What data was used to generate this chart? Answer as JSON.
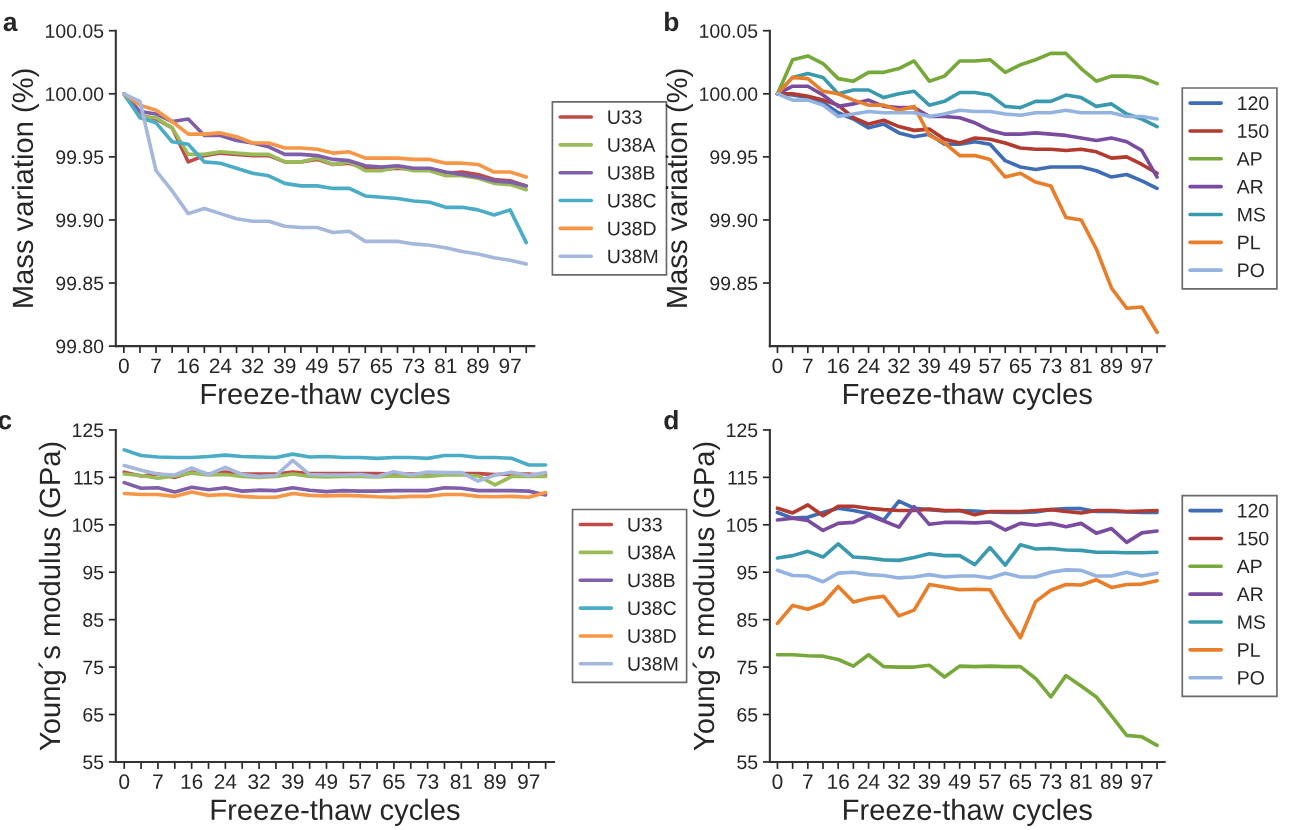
{
  "chart_data": [
    {
      "type": "line",
      "title": "a",
      "xlabel": "Freeze-thaw cycles",
      "ylabel": "Mass variation (%)",
      "legend": "right",
      "categories": [
        "0",
        null,
        "7",
        null,
        "16",
        null,
        "24",
        null,
        "32",
        null,
        "39",
        null,
        "49",
        null,
        "57",
        null,
        "65",
        null,
        "73",
        null,
        "81",
        null,
        "89",
        null,
        "97",
        null
      ],
      "ylim": [
        99.8,
        100.05
      ],
      "yticks": [
        {
          "value": 99.8,
          "label": "99.80"
        },
        {
          "value": 99.85,
          "label": "99.85"
        },
        {
          "value": 99.9,
          "label": "99.90"
        },
        {
          "value": 99.95,
          "label": "99.95"
        },
        {
          "value": 100.0,
          "label": "100.00"
        },
        {
          "value": 100.05,
          "label": "100.05"
        }
      ],
      "series": [
        {
          "name": "U33",
          "color": "#be4b48",
          "values": [
            100.0,
            99.983,
            99.98,
            99.973,
            99.946,
            99.951,
            99.953,
            99.952,
            99.951,
            99.951,
            99.946,
            99.946,
            99.948,
            99.944,
            99.945,
            99.941,
            99.94,
            99.941,
            99.94,
            99.94,
            99.937,
            99.938,
            99.936,
            99.932,
            99.931,
            99.927
          ]
        },
        {
          "name": "U38A",
          "color": "#9bbb59",
          "values": [
            100.0,
            99.982,
            99.981,
            99.973,
            99.952,
            99.952,
            99.954,
            99.953,
            99.952,
            99.952,
            99.946,
            99.946,
            99.949,
            99.944,
            99.946,
            99.939,
            99.939,
            99.942,
            99.939,
            99.939,
            99.935,
            99.935,
            99.933,
            99.929,
            99.928,
            99.924
          ]
        },
        {
          "name": "U38B",
          "color": "#7f5fa8",
          "values": [
            100.0,
            99.986,
            99.984,
            99.978,
            99.98,
            99.967,
            99.967,
            99.963,
            99.961,
            99.958,
            99.952,
            99.952,
            99.951,
            99.948,
            99.947,
            99.943,
            99.942,
            99.943,
            99.941,
            99.941,
            99.938,
            99.936,
            99.934,
            99.931,
            99.93,
            99.927
          ]
        },
        {
          "name": "U38C",
          "color": "#4bacc6",
          "values": [
            100.0,
            99.981,
            99.977,
            99.962,
            99.96,
            99.946,
            99.945,
            99.941,
            99.937,
            99.935,
            99.929,
            99.927,
            99.927,
            99.925,
            99.925,
            99.919,
            99.918,
            99.917,
            99.915,
            99.914,
            99.91,
            99.91,
            99.908,
            99.904,
            99.908,
            99.882
          ]
        },
        {
          "name": "U38D",
          "color": "#f79646",
          "values": [
            100.0,
            99.991,
            99.987,
            99.978,
            99.968,
            99.968,
            99.969,
            99.966,
            99.961,
            99.961,
            99.957,
            99.957,
            99.956,
            99.953,
            99.954,
            99.949,
            99.949,
            99.949,
            99.948,
            99.948,
            99.945,
            99.945,
            99.944,
            99.938,
            99.938,
            99.934
          ]
        },
        {
          "name": "U38M",
          "color": "#a5b8dc",
          "values": [
            100.0,
            99.994,
            99.939,
            99.923,
            99.905,
            99.909,
            99.905,
            99.901,
            99.899,
            99.899,
            99.895,
            99.894,
            99.894,
            99.89,
            99.891,
            99.883,
            99.883,
            99.883,
            99.881,
            99.88,
            99.878,
            99.875,
            99.873,
            99.87,
            99.868,
            99.865
          ]
        }
      ]
    },
    {
      "type": "line",
      "title": "b",
      "xlabel": "Freeze-thaw cycles",
      "ylabel": "Mass variation (%)",
      "legend": "right",
      "categories": [
        "0",
        null,
        "7",
        null,
        "16",
        null,
        "24",
        null,
        "32",
        null,
        "39",
        null,
        "49",
        null,
        "57",
        null,
        "65",
        null,
        "73",
        null,
        "81",
        null,
        "89",
        null,
        "97",
        null
      ],
      "ylim": [
        99.8,
        100.05
      ],
      "yticks": [
        {
          "value": 99.85,
          "label": "99.85"
        },
        {
          "value": 99.9,
          "label": "99.90"
        },
        {
          "value": 99.95,
          "label": "99.95"
        },
        {
          "value": 100.0,
          "label": "100.00"
        },
        {
          "value": 100.05,
          "label": "100.05"
        }
      ],
      "series": [
        {
          "name": "120",
          "color": "#3e6db5",
          "values": [
            100.0,
            99.999,
            99.997,
            99.993,
            99.985,
            99.98,
            99.973,
            99.976,
            99.969,
            99.966,
            99.968,
            99.96,
            99.96,
            99.962,
            99.96,
            99.947,
            99.942,
            99.94,
            99.942,
            99.942,
            99.942,
            99.939,
            99.934,
            99.936,
            99.931,
            99.925
          ]
        },
        {
          "name": "150",
          "color": "#b23a2e",
          "values": [
            100.0,
            100.0,
            99.998,
            99.995,
            99.991,
            99.981,
            99.976,
            99.979,
            99.974,
            99.971,
            99.972,
            99.964,
            99.961,
            99.965,
            99.964,
            99.961,
            99.957,
            99.956,
            99.956,
            99.955,
            99.956,
            99.954,
            99.949,
            99.95,
            99.944,
            99.937
          ]
        },
        {
          "name": "AP",
          "color": "#77a83a",
          "values": [
            100.0,
            100.027,
            100.03,
            100.024,
            100.012,
            100.01,
            100.017,
            100.017,
            100.02,
            100.026,
            100.01,
            100.014,
            100.026,
            100.026,
            100.027,
            100.017,
            100.023,
            100.027,
            100.032,
            100.032,
            100.02,
            100.01,
            100.014,
            100.014,
            100.013,
            100.008
          ]
        },
        {
          "name": "AR",
          "color": "#7a4c9f",
          "values": [
            100.0,
            100.006,
            100.006,
            99.999,
            99.99,
            99.992,
            99.995,
            99.99,
            99.989,
            99.989,
            99.982,
            99.982,
            99.981,
            99.977,
            99.971,
            99.968,
            99.968,
            99.969,
            99.968,
            99.967,
            99.965,
            99.963,
            99.965,
            99.962,
            99.955,
            99.934
          ]
        },
        {
          "name": "MS",
          "color": "#3a9aad",
          "values": [
            100.0,
            100.013,
            100.016,
            100.013,
            100.0,
            100.003,
            100.003,
            99.997,
            100.0,
            100.002,
            99.991,
            99.994,
            100.001,
            100.001,
            99.999,
            99.99,
            99.989,
            99.994,
            99.994,
            99.999,
            99.997,
            99.99,
            99.992,
            99.984,
            99.98,
            99.974
          ]
        },
        {
          "name": "PL",
          "color": "#e87e2a",
          "values": [
            100.0,
            100.013,
            100.012,
            100.002,
            100.0,
            99.995,
            99.991,
            99.991,
            99.987,
            99.99,
            99.967,
            99.961,
            99.951,
            99.951,
            99.948,
            99.934,
            99.937,
            99.93,
            99.927,
            99.902,
            99.9,
            99.877,
            99.846,
            99.83,
            99.831,
            99.811
          ]
        },
        {
          "name": "PO",
          "color": "#95b3e0",
          "values": [
            100.0,
            99.995,
            99.995,
            99.991,
            99.982,
            99.984,
            99.986,
            99.985,
            99.985,
            99.985,
            99.982,
            99.984,
            99.987,
            99.986,
            99.986,
            99.984,
            99.983,
            99.985,
            99.985,
            99.987,
            99.985,
            99.985,
            99.985,
            99.982,
            99.982,
            99.98
          ]
        }
      ]
    },
    {
      "type": "line",
      "title": "c",
      "xlabel": "Freeze-thaw cycles",
      "ylabel": "Young´s modulus (GPa)",
      "legend": "right",
      "categories": [
        "0",
        null,
        "7",
        null,
        "16",
        null,
        "24",
        null,
        "32",
        null,
        "39",
        null,
        "49",
        null,
        "57",
        null,
        "65",
        null,
        "73",
        null,
        "81",
        null,
        "89",
        null,
        "97",
        null
      ],
      "ylim": [
        55,
        125
      ],
      "yticks": [
        55,
        65,
        75,
        85,
        95,
        105,
        115,
        125
      ],
      "series": [
        {
          "name": "U33",
          "color": "#be4b48",
          "values": [
            116.1,
            115.3,
            115.7,
            115.0,
            116.1,
            115.7,
            116.1,
            115.7,
            115.7,
            115.7,
            116.1,
            115.8,
            115.8,
            115.8,
            115.8,
            115.8,
            115.7,
            115.7,
            115.7,
            115.8,
            115.8,
            115.8,
            115.6,
            115.7,
            115.7,
            115.4
          ]
        },
        {
          "name": "U38A",
          "color": "#9bbb59",
          "values": [
            115.7,
            115.4,
            114.8,
            115.3,
            115.9,
            115.5,
            115.6,
            115.2,
            115.0,
            115.2,
            115.7,
            115.2,
            115.1,
            115.2,
            115.2,
            115.1,
            115.3,
            115.2,
            115.2,
            115.5,
            115.5,
            115.3,
            113.4,
            115.2,
            115.2,
            115.2
          ]
        },
        {
          "name": "U38B",
          "color": "#7f5fa8",
          "values": [
            113.9,
            112.7,
            112.8,
            111.9,
            112.9,
            112.4,
            112.8,
            112.1,
            112.3,
            112.2,
            112.8,
            112.3,
            112.0,
            112.2,
            112.1,
            112.1,
            112.2,
            112.2,
            112.2,
            112.8,
            112.7,
            112.2,
            112.2,
            112.2,
            112.1,
            111.3
          ]
        },
        {
          "name": "U38C",
          "color": "#4bacc6",
          "values": [
            120.8,
            119.6,
            119.3,
            119.2,
            119.2,
            119.4,
            119.7,
            119.4,
            119.3,
            119.2,
            119.9,
            119.3,
            119.4,
            119.2,
            119.2,
            119.0,
            119.2,
            119.2,
            119.0,
            119.6,
            119.6,
            119.2,
            119.2,
            119.0,
            117.6,
            117.6
          ]
        },
        {
          "name": "U38D",
          "color": "#f79646",
          "values": [
            111.6,
            111.4,
            111.4,
            111.0,
            111.9,
            111.2,
            111.4,
            111.0,
            110.8,
            110.8,
            111.6,
            111.2,
            111.1,
            111.2,
            111.1,
            110.9,
            110.8,
            111.0,
            111.0,
            111.4,
            111.4,
            111.0,
            110.9,
            111.0,
            110.8,
            111.8
          ]
        },
        {
          "name": "U38M",
          "color": "#a5b8dc",
          "values": [
            117.5,
            116.5,
            115.7,
            115.5,
            117.0,
            115.6,
            117.1,
            115.6,
            115.2,
            115.4,
            118.6,
            115.6,
            115.5,
            115.5,
            115.6,
            115.2,
            116.2,
            115.5,
            116.1,
            116.0,
            116.0,
            114.2,
            115.5,
            116.1,
            115.4,
            116.0
          ]
        }
      ]
    },
    {
      "type": "line",
      "title": "d",
      "xlabel": "Freeze-thaw cycles",
      "ylabel": "Young´s modulus (GPa)",
      "legend": "right",
      "categories": [
        "0",
        null,
        "7",
        null,
        "16",
        null,
        "24",
        null,
        "32",
        null,
        "39",
        null,
        "49",
        null,
        "57",
        null,
        "65",
        null,
        "73",
        null,
        "81",
        null,
        "89",
        null,
        "97",
        null
      ],
      "ylim": [
        55,
        125
      ],
      "yticks": [
        55,
        65,
        75,
        85,
        95,
        105,
        115,
        125
      ],
      "series": [
        {
          "name": "120",
          "color": "#3e6db5",
          "values": [
            107.6,
            106.4,
            106.6,
            107.6,
            108.5,
            108.0,
            107.4,
            106.0,
            110.0,
            108.5,
            108.2,
            107.9,
            108.0,
            107.9,
            107.7,
            107.6,
            107.6,
            107.7,
            108.2,
            108.4,
            108.4,
            107.8,
            107.8,
            107.7,
            107.6,
            107.6
          ]
        },
        {
          "name": "150",
          "color": "#b23a2e",
          "values": [
            108.5,
            107.5,
            109.2,
            106.9,
            108.9,
            108.9,
            108.5,
            108.2,
            108.0,
            108.0,
            108.3,
            108.0,
            108.0,
            107.1,
            107.8,
            107.8,
            107.8,
            108.0,
            108.2,
            107.8,
            107.5,
            108.0,
            108.0,
            107.8,
            107.9,
            108.0
          ]
        },
        {
          "name": "AP",
          "color": "#77a83a",
          "values": [
            77.6,
            77.6,
            77.4,
            77.3,
            76.6,
            75.2,
            77.6,
            75.1,
            75.0,
            75.0,
            75.4,
            72.9,
            75.2,
            75.1,
            75.2,
            75.1,
            75.1,
            72.6,
            68.7,
            73.2,
            71.0,
            68.7,
            64.7,
            60.6,
            60.3,
            58.5
          ]
        },
        {
          "name": "AR",
          "color": "#7a4c9f",
          "values": [
            106.0,
            106.4,
            105.9,
            103.8,
            105.3,
            105.5,
            107.0,
            105.8,
            104.5,
            108.8,
            105.1,
            105.5,
            105.5,
            105.4,
            105.6,
            103.9,
            105.3,
            104.9,
            105.3,
            104.6,
            105.3,
            103.2,
            104.2,
            101.3,
            103.3,
            103.7
          ]
        },
        {
          "name": "MS",
          "color": "#3a9aad",
          "values": [
            98.0,
            98.5,
            99.4,
            98.2,
            101.0,
            98.2,
            98.0,
            97.6,
            97.5,
            98.1,
            98.9,
            98.5,
            98.5,
            96.6,
            100.2,
            96.5,
            100.8,
            99.9,
            100.0,
            99.7,
            99.6,
            99.2,
            99.2,
            99.1,
            99.1,
            99.2
          ]
        },
        {
          "name": "PL",
          "color": "#e87e2a",
          "values": [
            84.2,
            88.0,
            87.2,
            88.4,
            92.0,
            88.7,
            89.5,
            89.9,
            85.8,
            87.0,
            92.4,
            91.9,
            91.3,
            91.4,
            91.3,
            86.0,
            81.2,
            88.8,
            91.2,
            92.4,
            92.3,
            93.4,
            91.8,
            92.4,
            92.5,
            93.2
          ]
        },
        {
          "name": "PO",
          "color": "#95b3e0",
          "values": [
            95.4,
            94.3,
            94.2,
            93.0,
            94.8,
            95.0,
            94.5,
            94.3,
            93.8,
            94.0,
            94.5,
            94.0,
            94.2,
            94.2,
            93.8,
            94.8,
            94.0,
            94.0,
            95.0,
            95.5,
            95.4,
            94.2,
            94.2,
            95.0,
            94.2,
            94.8
          ]
        }
      ]
    }
  ]
}
